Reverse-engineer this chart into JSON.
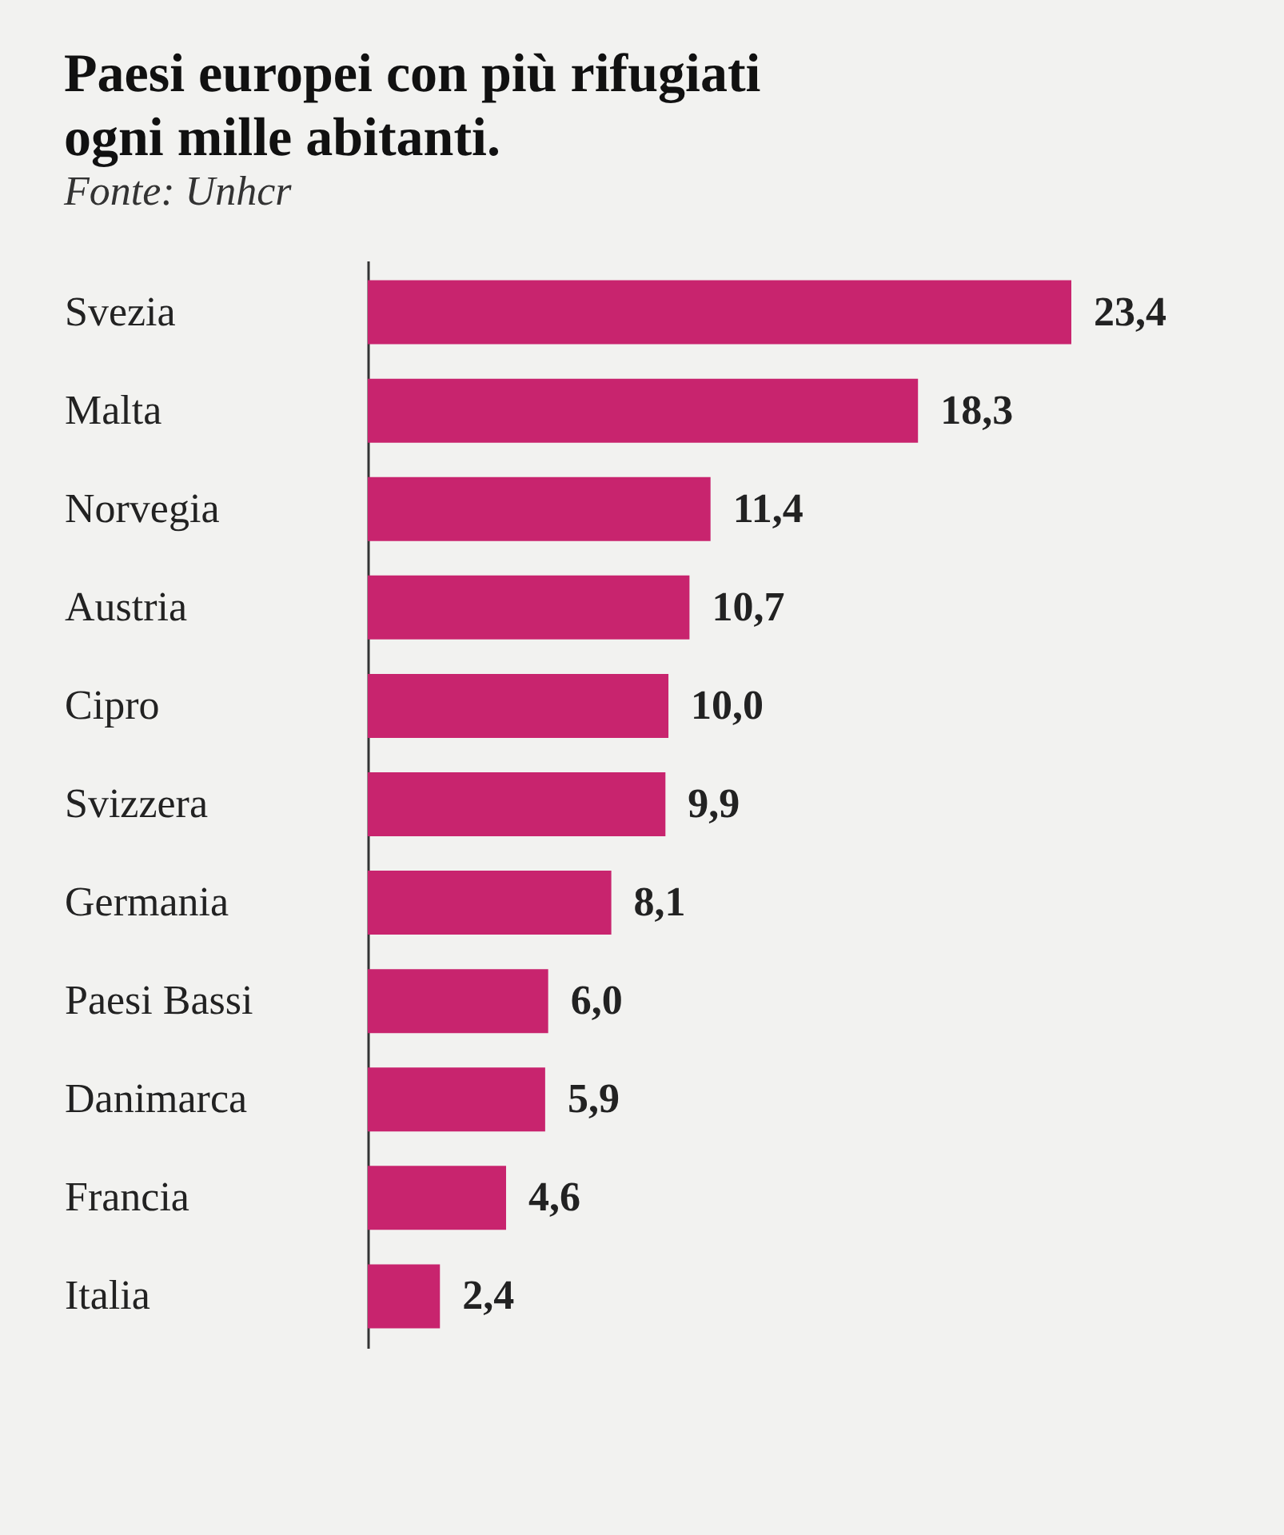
{
  "chart_data": {
    "type": "bar",
    "orientation": "horizontal",
    "title": "Paesi europei con più rifugiati ogni mille abitanti.",
    "annotations": [
      "Fonte: Unhcr"
    ],
    "categories": [
      "Svezia",
      "Malta",
      "Norvegia",
      "Austria",
      "Cipro",
      "Svizzera",
      "Germania",
      "Paesi Bassi",
      "Danimarca",
      "Francia",
      "Italia"
    ],
    "values": [
      23.4,
      18.3,
      11.4,
      10.7,
      10.0,
      9.9,
      8.1,
      6.0,
      5.9,
      4.6,
      2.4
    ],
    "value_labels": [
      "23,4",
      "18,3",
      "11,4",
      "10,7",
      "10,0",
      "9,9",
      "8,1",
      "6,0",
      "5,9",
      "4,6",
      "2,4"
    ],
    "color": "#c8246e"
  }
}
